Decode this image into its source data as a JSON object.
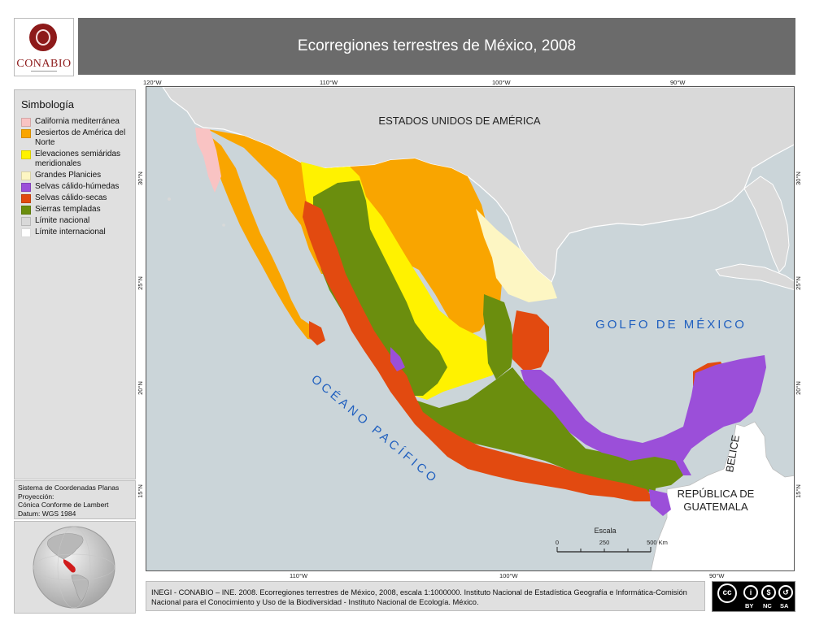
{
  "header": {
    "logo_text": "CONABIO",
    "title": "Ecorregiones terrestres de México, 2008"
  },
  "legend": {
    "title": "Simbología",
    "items": [
      {
        "label": "California mediterránea",
        "color": "#f9c3c3"
      },
      {
        "label": "Desiertos de América del Norte",
        "color": "#f9a500"
      },
      {
        "label": "Elevaciones semiáridas meridionales",
        "color": "#fff200"
      },
      {
        "label": "Grandes Planicies",
        "color": "#fdf6c3"
      },
      {
        "label": "Selvas cálido-húmedas",
        "color": "#9b4fd9"
      },
      {
        "label": "Selvas cálido-secas",
        "color": "#e24a10"
      },
      {
        "label": "Sierras templadas",
        "color": "#6b8e0e"
      },
      {
        "label": "Límite nacional",
        "color": "#d9d9d9"
      },
      {
        "label": "Límite internacional",
        "color": "#ffffff"
      }
    ]
  },
  "projection": {
    "lines": [
      "Sistema de Coordenadas Planas",
      "Proyección:",
      "Cónica Conforme de Lambert",
      "Datum: WGS 1984"
    ]
  },
  "map": {
    "labels": {
      "usa": "ESTADOS UNIDOS DE AMÉRICA",
      "gulf": "GOLFO DE MÉXICO",
      "pacific": "OCÉANO PACÍFICO",
      "belize": "BELICE",
      "guatemala_1": "REPÚBLICA DE",
      "guatemala_2": "GUATEMALA"
    },
    "lon_ticks_top": [
      "120°W",
      "110°W",
      "100°W",
      "90°W"
    ],
    "lon_ticks_bottom": [
      "110°W",
      "100°W",
      "90°W"
    ],
    "lat_ticks": [
      "30°N",
      "25°N",
      "20°N",
      "15°N"
    ],
    "scale": {
      "title": "Escala",
      "labels": [
        "0",
        "250",
        "500 Km"
      ]
    }
  },
  "footer": {
    "citation": "INEGI - CONABIO – INE. 2008. Ecorregiones terrestres de México, 2008, escala 1:1000000. Instituto Nacional de Estadística Geografía e Informática-Comisión Nacional para el Conocimiento y Uso de la Biodiversidad - Instituto Nacional de Ecología. México.",
    "license": [
      "BY",
      "NC",
      "SA"
    ]
  },
  "colors": {
    "ocean": "#cbd5d9",
    "land": "#d9d9d9",
    "title_bar": "#6b6b6b",
    "water_label": "#1f5fbf"
  }
}
